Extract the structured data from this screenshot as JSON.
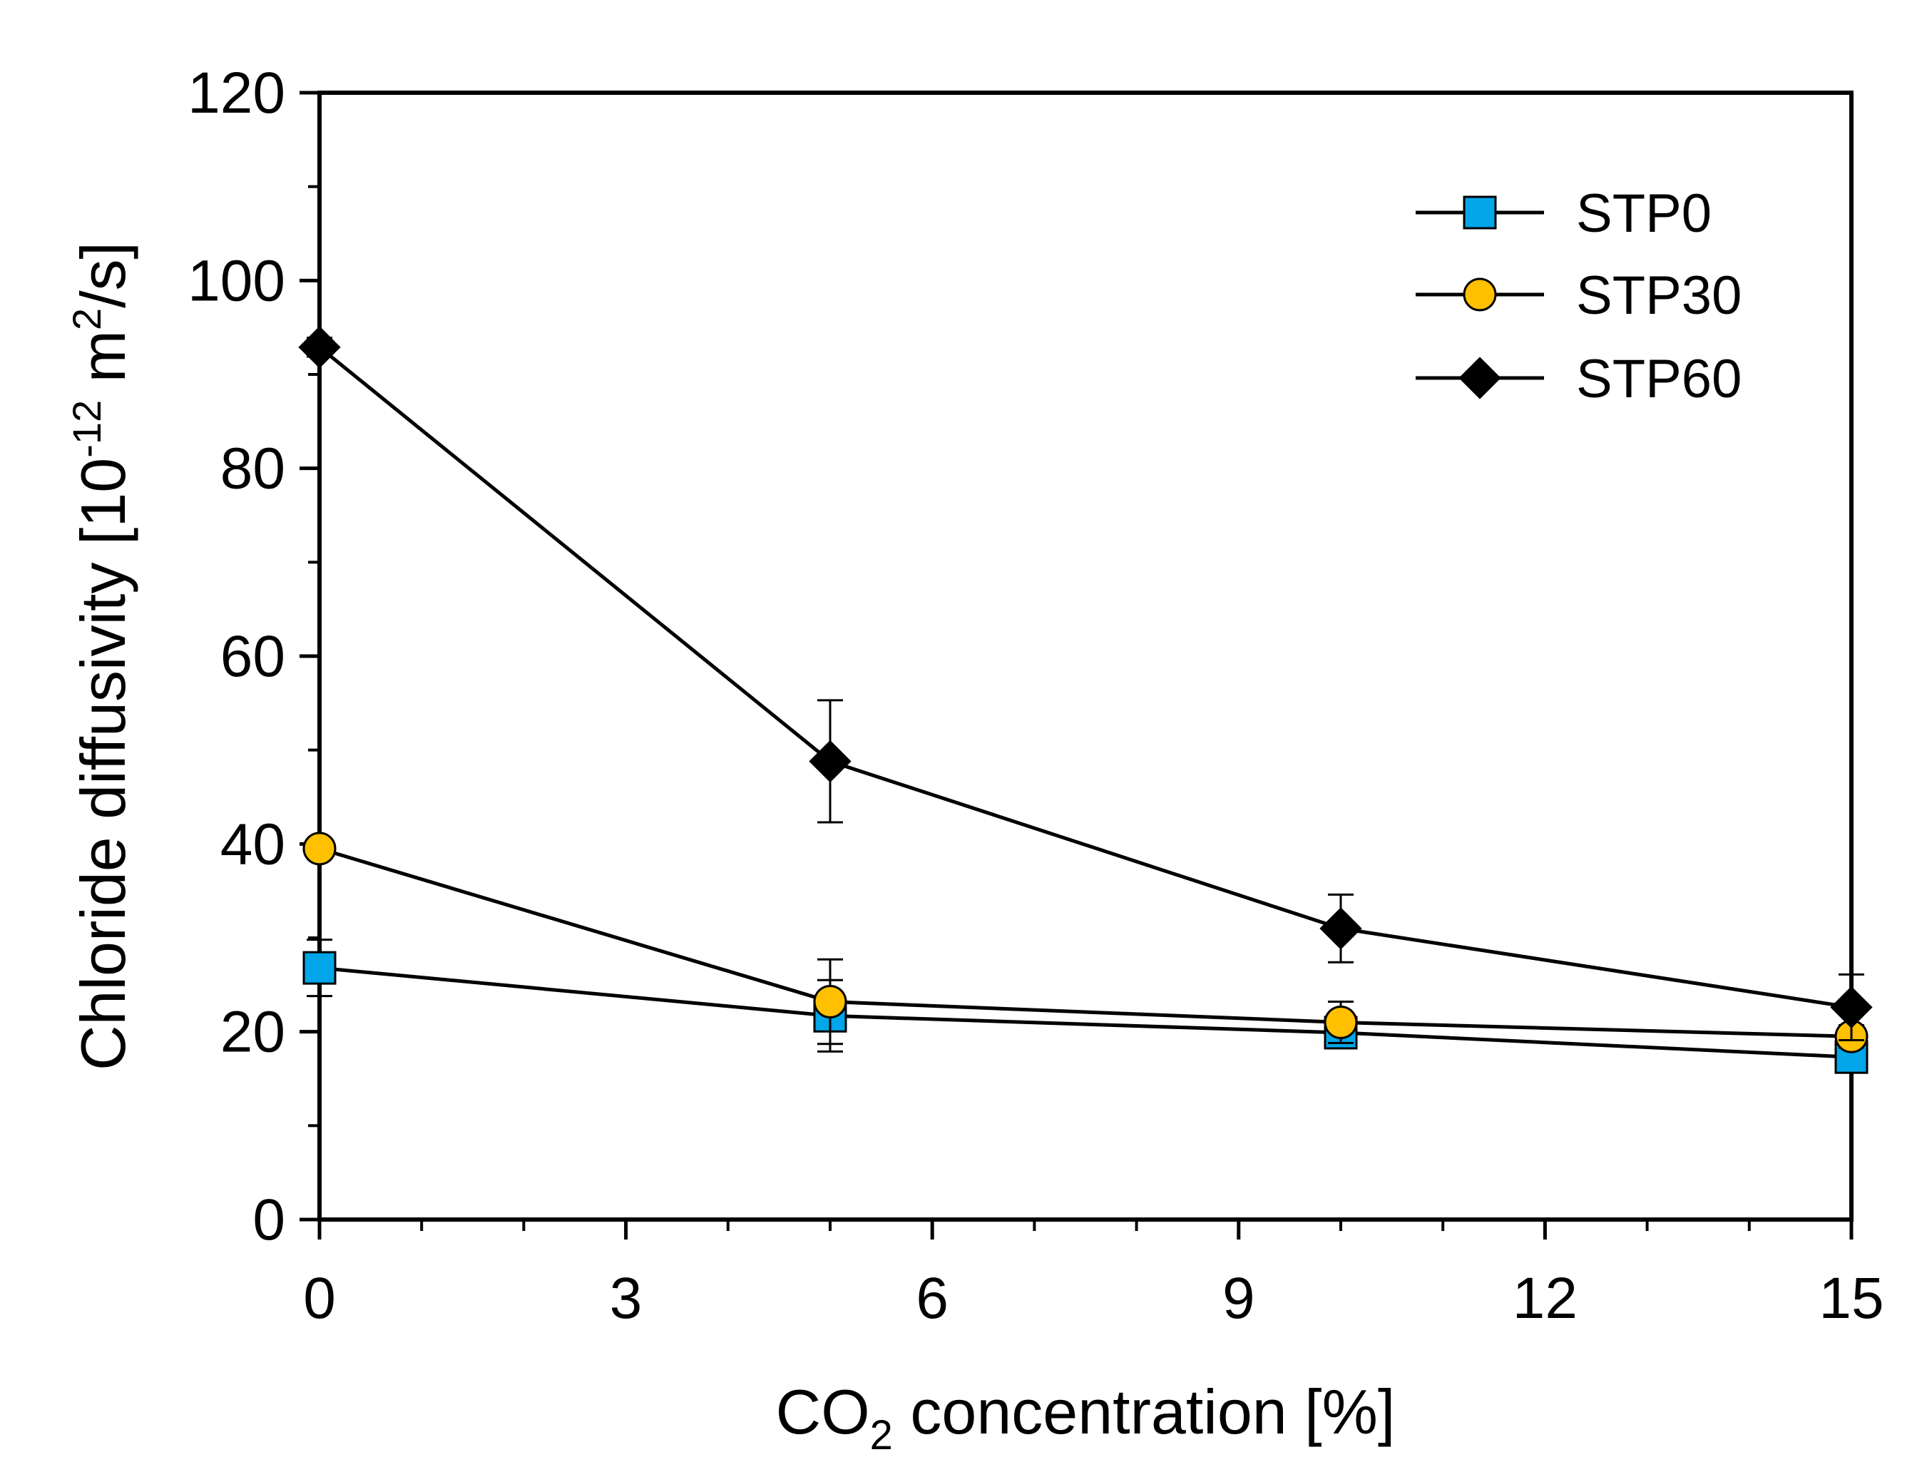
{
  "chart_data": {
    "type": "line",
    "title": "",
    "xlabel": {
      "prefix": "CO",
      "subscript": "2",
      "suffix": " concentration [%]"
    },
    "ylabel": {
      "prefix": "Chloride diffusivity [10",
      "exponent1": "-12",
      "middle": " m",
      "exponent2": "2",
      "suffix": "/s]"
    },
    "xlim": [
      0,
      15
    ],
    "ylim": [
      0,
      120
    ],
    "xticks": [
      0,
      3,
      6,
      9,
      12,
      15
    ],
    "yticks": [
      0,
      20,
      40,
      60,
      80,
      100,
      120
    ],
    "xtick_labels": [
      "0",
      "3",
      "6",
      "9",
      "12",
      "15"
    ],
    "ytick_labels": [
      "0",
      "20",
      "40",
      "60",
      "80",
      "100",
      "120"
    ],
    "x": [
      0,
      5,
      10,
      15
    ],
    "legend_position": "top-right",
    "series": [
      {
        "name": "STP0",
        "marker": "square",
        "color": "#00a6e8",
        "values": [
          26.8,
          21.7,
          19.9,
          17.3
        ],
        "errors": [
          3.0,
          3.8,
          1.5,
          1.5
        ]
      },
      {
        "name": "STP30",
        "marker": "circle",
        "color": "#ffc000",
        "values": [
          39.5,
          23.2,
          21.0,
          19.5
        ],
        "errors": [
          1.0,
          4.5,
          2.2,
          1.2
        ]
      },
      {
        "name": "STP60",
        "marker": "diamond",
        "color": "#000000",
        "values": [
          92.9,
          48.8,
          31.0,
          22.6
        ],
        "errors": [
          1.0,
          6.5,
          3.6,
          3.5
        ]
      }
    ]
  }
}
